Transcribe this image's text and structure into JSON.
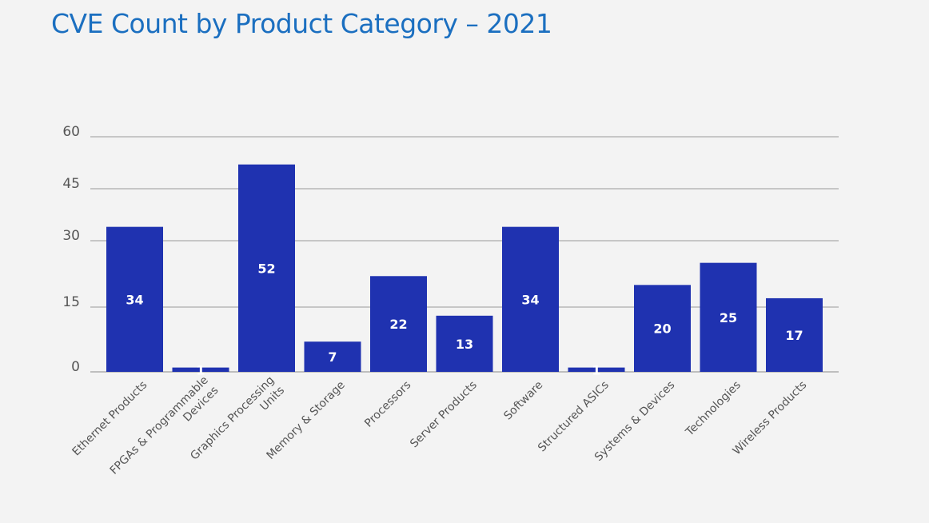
{
  "chart_data": {
    "type": "bar",
    "title": "CVE Count by Product Category – 2021",
    "xlabel": "",
    "ylabel": "",
    "ylim": [
      0,
      60
    ],
    "yticks": [
      0,
      15,
      30,
      45,
      60
    ],
    "grid": true,
    "categories": [
      "Ethernet Products",
      "FPGAs & Programmable Devices",
      "Graphics Processing Units",
      "Memory & Storage",
      "Processors",
      "Server Products",
      "Software",
      "Structured ASICs",
      "Systems & Devices",
      "Technologies",
      "Wireless Products"
    ],
    "values": [
      34,
      1,
      52,
      7,
      22,
      13,
      34,
      1,
      20,
      25,
      17
    ],
    "bar_color": "#1f32b0",
    "title_color": "#1b6fc0"
  }
}
